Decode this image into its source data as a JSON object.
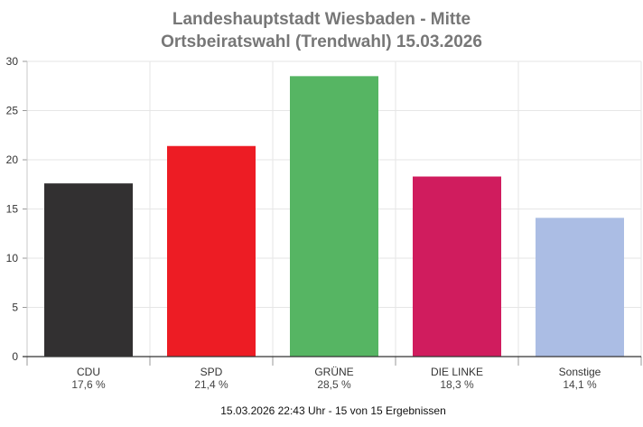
{
  "chart_data": {
    "type": "bar",
    "title_line1": "Landeshauptstadt Wiesbaden - Mitte",
    "title_line2": "Ortsbeiratswahl (Trendwahl) 15.03.2026",
    "categories": [
      "CDU",
      "SPD",
      "GRÜNE",
      "DIE LINKE",
      "Sonstige"
    ],
    "values": [
      17.6,
      21.4,
      28.5,
      18.3,
      14.1
    ],
    "value_labels": [
      "17,6 %",
      "21,4 %",
      "28,5 %",
      "18,3 %",
      "14,1 %"
    ],
    "colors": [
      "#323031",
      "#ed1c24",
      "#56b563",
      "#d01c5e",
      "#abbde4"
    ],
    "ylim": [
      0,
      30
    ],
    "yticks": [
      "0",
      "5",
      "10",
      "15",
      "20",
      "25",
      "30"
    ],
    "grid": true,
    "footer": "15.03.2026 22:43 Uhr - 15 von 15 Ergebnissen"
  }
}
